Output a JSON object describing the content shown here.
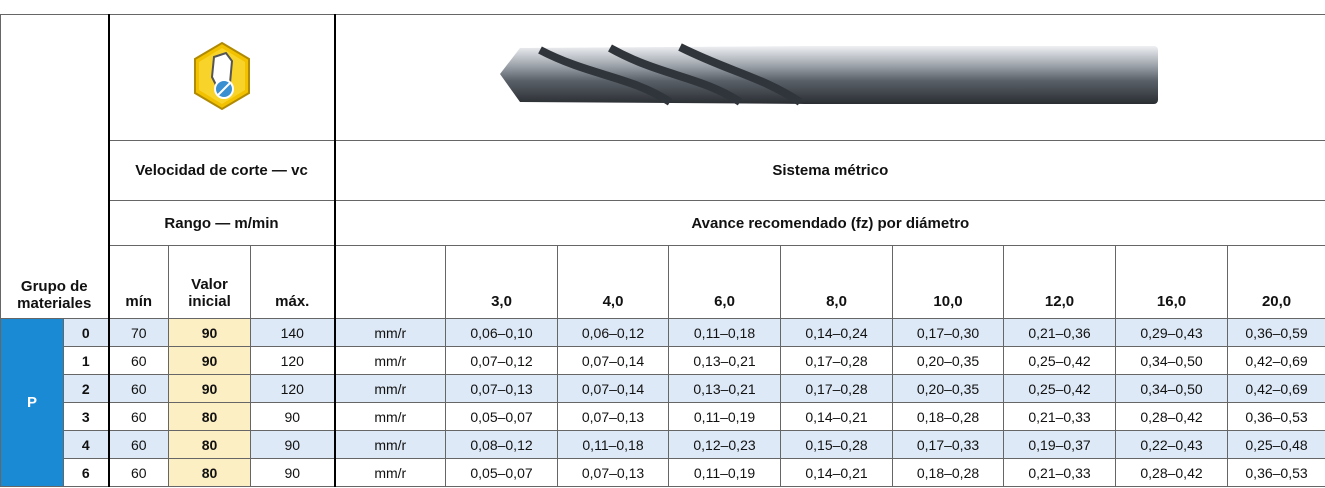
{
  "header": {
    "speed": "Velocidad de corte — vc",
    "system": "Sistema métrico",
    "range": "Rango — m/min",
    "feed": "Avance recomendado (fz) por diámetro",
    "group": "Grupo de materiales",
    "min": "mín",
    "initial": "Valor inicial",
    "max": "máx.",
    "diameters": [
      "3,0",
      "4,0",
      "6,0",
      "8,0",
      "10,0",
      "12,0",
      "16,0",
      "20,0"
    ]
  },
  "group": "P",
  "rows": [
    {
      "sub": 0,
      "min": 70,
      "initial": 90,
      "max": 140,
      "unit": "mm/r",
      "feeds": [
        "0,06–0,10",
        "0,06–0,12",
        "0,11–0,18",
        "0,14–0,24",
        "0,17–0,30",
        "0,21–0,36",
        "0,29–0,43",
        "0,36–0,59"
      ]
    },
    {
      "sub": 1,
      "min": 60,
      "initial": 90,
      "max": 120,
      "unit": "mm/r",
      "feeds": [
        "0,07–0,12",
        "0,07–0,14",
        "0,13–0,21",
        "0,17–0,28",
        "0,20–0,35",
        "0,25–0,42",
        "0,34–0,50",
        "0,42–0,69"
      ]
    },
    {
      "sub": 2,
      "min": 60,
      "initial": 90,
      "max": 120,
      "unit": "mm/r",
      "feeds": [
        "0,07–0,13",
        "0,07–0,14",
        "0,13–0,21",
        "0,17–0,28",
        "0,20–0,35",
        "0,25–0,42",
        "0,34–0,50",
        "0,42–0,69"
      ]
    },
    {
      "sub": 3,
      "min": 60,
      "initial": 80,
      "max": 90,
      "unit": "mm/r",
      "feeds": [
        "0,05–0,07",
        "0,07–0,13",
        "0,11–0,19",
        "0,14–0,21",
        "0,18–0,28",
        "0,21–0,33",
        "0,28–0,42",
        "0,36–0,53"
      ]
    },
    {
      "sub": 4,
      "min": 60,
      "initial": 80,
      "max": 90,
      "unit": "mm/r",
      "feeds": [
        "0,08–0,12",
        "0,11–0,18",
        "0,12–0,23",
        "0,15–0,28",
        "0,17–0,33",
        "0,19–0,37",
        "0,22–0,43",
        "0,25–0,48"
      ]
    },
    {
      "sub": 6,
      "min": 60,
      "initial": 80,
      "max": 90,
      "unit": "mm/r",
      "feeds": [
        "0,05–0,07",
        "0,07–0,13",
        "0,11–0,19",
        "0,14–0,21",
        "0,18–0,28",
        "0,21–0,33",
        "0,28–0,42",
        "0,36–0,53"
      ]
    }
  ]
}
